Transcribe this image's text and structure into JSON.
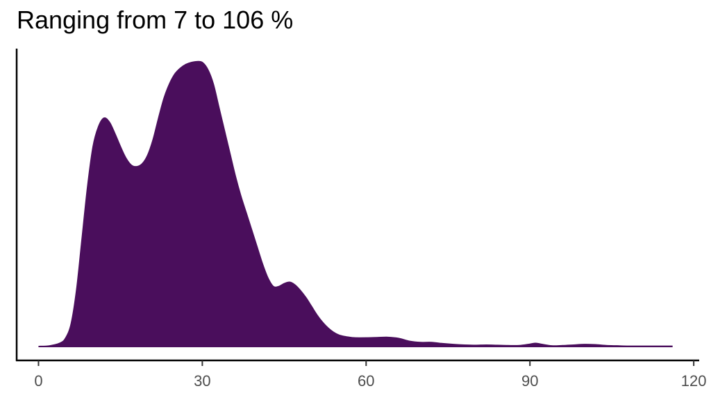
{
  "chart_data": {
    "type": "area",
    "title": "Ranging from 7 to 106 %",
    "xlabel": "",
    "ylabel": "",
    "xlim": [
      -4,
      121
    ],
    "ylim": [
      0,
      1
    ],
    "x_ticks": [
      0,
      30,
      60,
      90,
      120
    ],
    "x_tick_labels": [
      "0",
      "30",
      "60",
      "90",
      "120"
    ],
    "y_axis_ticks_shown": false,
    "grid": false,
    "legend": "none",
    "series": [
      {
        "fill_color": "#4a0e5c",
        "x": [
          0,
          2,
          4,
          5,
          6,
          7,
          8,
          9,
          10,
          11,
          12,
          13,
          14,
          15,
          16,
          17,
          18,
          19,
          20,
          21,
          22,
          23,
          24,
          25,
          26,
          27,
          28,
          29,
          30,
          31,
          32,
          33,
          34,
          35,
          36,
          37,
          38,
          39,
          40,
          41,
          42,
          43,
          44,
          45,
          46,
          47,
          48,
          49,
          50,
          51,
          52,
          53,
          54,
          55,
          56,
          57,
          58,
          60,
          62,
          64,
          66,
          68,
          70,
          72,
          74,
          76,
          78,
          80,
          82,
          84,
          86,
          88,
          90,
          91,
          92,
          94,
          96,
          98,
          100,
          102,
          104,
          106,
          108,
          110,
          112,
          114,
          116
        ],
        "y": [
          0.0,
          0.002,
          0.012,
          0.03,
          0.08,
          0.2,
          0.38,
          0.56,
          0.7,
          0.77,
          0.8,
          0.785,
          0.745,
          0.7,
          0.66,
          0.635,
          0.63,
          0.64,
          0.67,
          0.725,
          0.8,
          0.87,
          0.92,
          0.955,
          0.975,
          0.988,
          0.995,
          0.998,
          0.995,
          0.97,
          0.92,
          0.84,
          0.76,
          0.68,
          0.6,
          0.53,
          0.47,
          0.41,
          0.35,
          0.29,
          0.24,
          0.21,
          0.21,
          0.22,
          0.225,
          0.215,
          0.195,
          0.17,
          0.14,
          0.11,
          0.085,
          0.065,
          0.05,
          0.04,
          0.035,
          0.032,
          0.03,
          0.03,
          0.031,
          0.032,
          0.028,
          0.018,
          0.014,
          0.014,
          0.01,
          0.007,
          0.005,
          0.004,
          0.005,
          0.004,
          0.003,
          0.003,
          0.008,
          0.011,
          0.008,
          0.002,
          0.003,
          0.005,
          0.007,
          0.006,
          0.003,
          0.002,
          0.001,
          0.001,
          0.001,
          0.001,
          0.001
        ]
      }
    ]
  }
}
